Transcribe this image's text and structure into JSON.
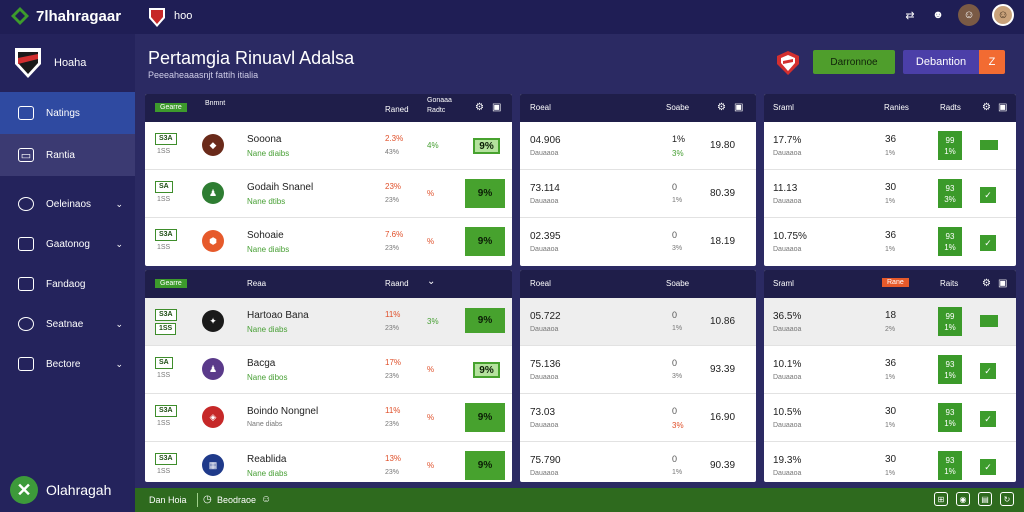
{
  "app": {
    "brand": "7lhahragaar",
    "top_link": "hoo",
    "sidebar_footer": "Olahragah"
  },
  "sidebar": {
    "header_label": "Hoaha",
    "items": [
      {
        "label": "Natings",
        "icon": "shield-icon"
      },
      {
        "label": "Rantia",
        "icon": "calendar-icon"
      },
      {
        "label": "Oeleinaos",
        "icon": "ball-icon"
      },
      {
        "label": "Gaatonog",
        "icon": "tv-icon"
      },
      {
        "label": "Fandaog",
        "icon": "stats-icon"
      },
      {
        "label": "Seatnae",
        "icon": "target-icon"
      },
      {
        "label": "Bectore",
        "icon": "flag-icon"
      }
    ]
  },
  "header": {
    "title": "Pertamgia Rinuavl Adalsa",
    "subtitle": "Peeeaheaaasnjt fattih itialia",
    "btn_primary": "Darronnoe",
    "btn_secondary": "Debantion",
    "btn_close": "Z"
  },
  "panels": {
    "left": {
      "sections": [
        {
          "badge": "Gearre",
          "col1": "Bnmnt",
          "col2": "Raned",
          "col3a": "Gonaaa",
          "col3b": "Radtc",
          "rows": [
            {
              "b1": "S3A",
              "b2": "1SS",
              "name": "Sooona",
              "sub": "Nane diaibs",
              "r1": "2.3%",
              "r2": "43%",
              "pct": "4%",
              "odds": "9%",
              "big": false
            },
            {
              "b1": "SA",
              "b2": "1SS",
              "name": "Godaih Snanel",
              "sub": "Nane dtibs",
              "r1": "23%",
              "r2": "23%",
              "pct": "%",
              "odds": "9%",
              "big": true
            },
            {
              "b1": "S3A",
              "b2": "1SS",
              "name": "Sohoaie",
              "sub": "Nane diaibs",
              "r1": "7.6%",
              "r2": "23%",
              "pct": "%",
              "odds": "9%",
              "big": true
            }
          ]
        },
        {
          "badge": "Gearre",
          "col1": "Reaa",
          "col2": "Raand",
          "col3a": "",
          "col3b": "",
          "rows": [
            {
              "b1": "S3A",
              "b2": "1SS",
              "name": "Hartoao Bana",
              "sub": "Nane diabs",
              "r1": "11%",
              "r2": "23%",
              "pct": "3%",
              "odds": "9%",
              "big": true
            },
            {
              "b1": "SA",
              "b2": "1SS",
              "name": "Bacga",
              "sub": "Nane dibos",
              "r1": "17%",
              "r2": "23%",
              "pct": "%",
              "odds": "9%",
              "big": false
            },
            {
              "b1": "S3A",
              "b2": "1SS",
              "name": "Boindo Nongnel",
              "sub": "Nane diabs",
              "r1": "11%",
              "r2": "23%",
              "pct": "%",
              "odds": "9%",
              "big": true
            },
            {
              "b1": "S3A",
              "b2": "1SS",
              "name": "Reablida",
              "sub": "Nane diabs",
              "r1": "13%",
              "r2": "23%",
              "pct": "%",
              "odds": "9%",
              "big": true
            }
          ]
        }
      ]
    },
    "middle": {
      "sections": [
        {
          "col1": "Roeal",
          "col2": "Soabe",
          "rows": [
            {
              "v": "04.906",
              "sub": "Dauaaoa",
              "a": "1%",
              "b": "3%",
              "c": "19.80"
            },
            {
              "v": "73.114",
              "sub": "Dauaaoa",
              "a": "0",
              "b": "1%",
              "c": "80.39"
            },
            {
              "v": "02.395",
              "sub": "Dauaaoa",
              "a": "0",
              "b": "3%",
              "c": "18.19"
            }
          ]
        },
        {
          "col1": "Roeal",
          "col2": "Soabe",
          "rows": [
            {
              "v": "05.722",
              "sub": "Dauaaoa",
              "a": "0",
              "b": "1%",
              "c": "10.86"
            },
            {
              "v": "75.136",
              "sub": "Dauaaoa",
              "a": "0",
              "b": "3%",
              "c": "93.39"
            },
            {
              "v": "73.03",
              "sub": "Dauaaoa",
              "a": "0",
              "b": "3%",
              "c": "16.90"
            },
            {
              "v": "75.790",
              "sub": "Dauaaoa",
              "a": "0",
              "b": "1%",
              "c": "90.39"
            }
          ]
        }
      ]
    },
    "right": {
      "sections": [
        {
          "col1": "Sraml",
          "col2": "Ranies",
          "col3": "Radts",
          "badge": "",
          "rows": [
            {
              "v": "17.7%",
              "sub": "Dauaaoa",
              "a": "36",
              "b": "1%",
              "t1": "99",
              "t2": "1%"
            },
            {
              "v": "11.13",
              "sub": "Dauaaoa",
              "a": "30",
              "b": "1%",
              "t1": "93",
              "t2": "3%"
            },
            {
              "v": "10.75%",
              "sub": "Dauaaoa",
              "a": "36",
              "b": "1%",
              "t1": "93",
              "t2": "1%"
            }
          ]
        },
        {
          "col1": "Sraml",
          "col2": "",
          "col3": "Raits",
          "badge": "Rane",
          "rows": [
            {
              "v": "36.5%",
              "sub": "Dauaaoa",
              "a": "18",
              "b": "2%",
              "t1": "99",
              "t2": "1%"
            },
            {
              "v": "10.1%",
              "sub": "Dauaaoa",
              "a": "36",
              "b": "1%",
              "t1": "93",
              "t2": "1%"
            },
            {
              "v": "10.5%",
              "sub": "Dauaaoa",
              "a": "30",
              "b": "1%",
              "t1": "93",
              "t2": "1%"
            },
            {
              "v": "19.3%",
              "sub": "Dauaaoa",
              "a": "30",
              "b": "1%",
              "t1": "93",
              "t2": "1%"
            }
          ]
        }
      ]
    }
  },
  "bottom": {
    "left": "Dan Hoia",
    "mid": "Beodraoe"
  },
  "colors": {
    "green": "#47a22e",
    "navy": "#1f1e55",
    "accent_orange": "#f26b32",
    "purple": "#4b3fa8"
  }
}
